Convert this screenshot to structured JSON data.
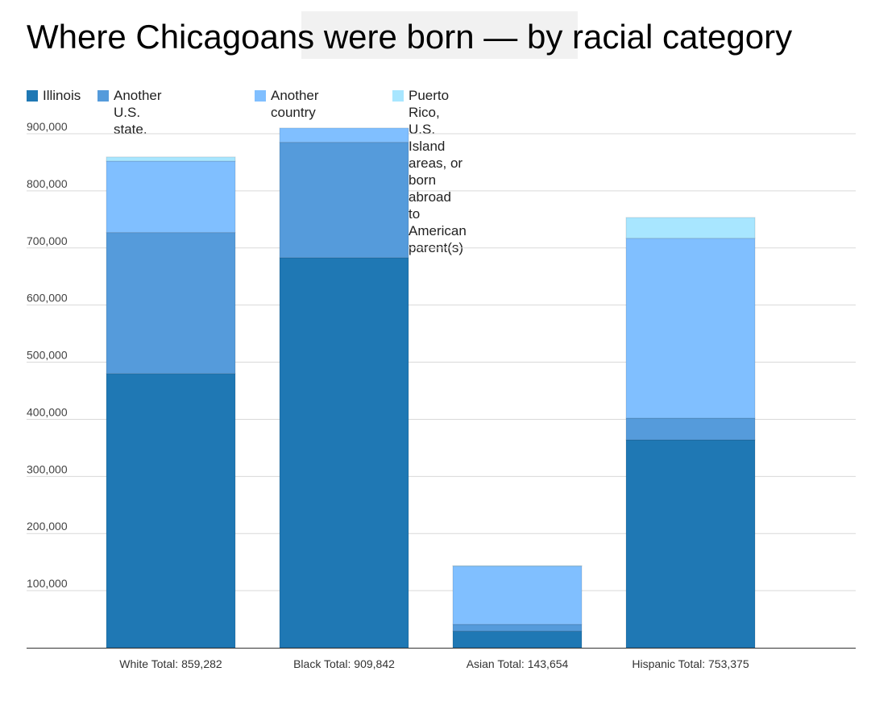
{
  "title": "Where Chicagoans were born — by racial category",
  "colors": {
    "illinois": "#1f78b4",
    "another_state": "#559bdb",
    "another_country": "#80bfff",
    "puerto_rico": "#a8e6ff",
    "grid": "#d9d9d9",
    "axis": "#333333"
  },
  "legend": {
    "items": [
      {
        "label": "Illinois",
        "color": "#1f78b4"
      },
      {
        "label": "Another U.S. state.",
        "line1": "Another U.S.",
        "line2": "state.",
        "color": "#559bdb"
      },
      {
        "label": "Another country",
        "color": "#80bfff"
      },
      {
        "label": "Puerto Rico, U.S. Island areas, or born abroad to American parent(s)",
        "color": "#a8e6ff"
      }
    ]
  },
  "chart_data": {
    "type": "bar",
    "stacked": true,
    "title": "Where Chicagoans were born — by racial category",
    "categories": [
      "White Total: 859,282",
      "Black Total: 909,842",
      "Asian Total: 143,654",
      "Hispanic Total: 753,375"
    ],
    "series": [
      {
        "name": "Illinois",
        "values": [
          480000,
          683000,
          29000,
          364000
        ]
      },
      {
        "name": "Another U.S. state.",
        "values": [
          247000,
          202000,
          12000,
          38000
        ]
      },
      {
        "name": "Another country",
        "values": [
          125000,
          25000,
          102000,
          315000
        ]
      },
      {
        "name": "Puerto Rico, U.S. Island areas, or born abroad to American parent(s)",
        "values": [
          7282,
          0,
          654,
          36375
        ]
      }
    ],
    "ylim": [
      0,
      900000
    ],
    "yticks": [
      100000,
      200000,
      300000,
      400000,
      500000,
      600000,
      700000,
      800000,
      900000
    ],
    "ytick_labels": [
      "100,000",
      "200,000",
      "300,000",
      "400,000",
      "500,000",
      "600,000",
      "700,000",
      "800,000",
      "900,000"
    ],
    "grid": true,
    "legend_position": "top"
  }
}
